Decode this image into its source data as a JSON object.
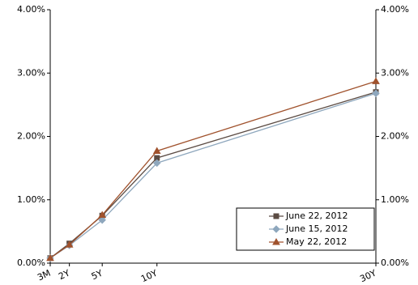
{
  "chart_data": {
    "type": "line",
    "x": [
      0.25,
      2,
      5,
      10,
      30
    ],
    "xlim": [
      0.25,
      30
    ],
    "xticks": [
      {
        "value": 0.25,
        "label": "3M"
      },
      {
        "value": 2,
        "label": "2Y"
      },
      {
        "value": 5,
        "label": "5Y"
      },
      {
        "value": 10,
        "label": "10Y"
      },
      {
        "value": 30,
        "label": "30Y"
      }
    ],
    "ylim": [
      0,
      4
    ],
    "yticks": [
      {
        "value": 0,
        "label": "0.00%"
      },
      {
        "value": 1,
        "label": "1.00%"
      },
      {
        "value": 2,
        "label": "2.00%"
      },
      {
        "value": 3,
        "label": "3.00%"
      },
      {
        "value": 4,
        "label": "4.00%"
      }
    ],
    "y2lim": [
      0,
      4
    ],
    "y2ticks": [
      {
        "value": 0,
        "label": "0.00%"
      },
      {
        "value": 1,
        "label": "1.00%"
      },
      {
        "value": 2,
        "label": "2.00%"
      },
      {
        "value": 3,
        "label": "3.00%"
      },
      {
        "value": 4,
        "label": "4.00%"
      }
    ],
    "legend": "lower-right",
    "series": [
      {
        "name": "June 22, 2012",
        "color": "#5b4b43",
        "marker": "square",
        "values": [
          0.08,
          0.31,
          0.75,
          1.66,
          2.7
        ]
      },
      {
        "name": "June 15, 2012",
        "color": "#8ea7bd",
        "marker": "diamond",
        "values": [
          0.08,
          0.28,
          0.68,
          1.58,
          2.68
        ]
      },
      {
        "name": "May 22, 2012",
        "color": "#a0522d",
        "marker": "triangle",
        "values": [
          0.08,
          0.29,
          0.76,
          1.77,
          2.87
        ]
      }
    ]
  }
}
